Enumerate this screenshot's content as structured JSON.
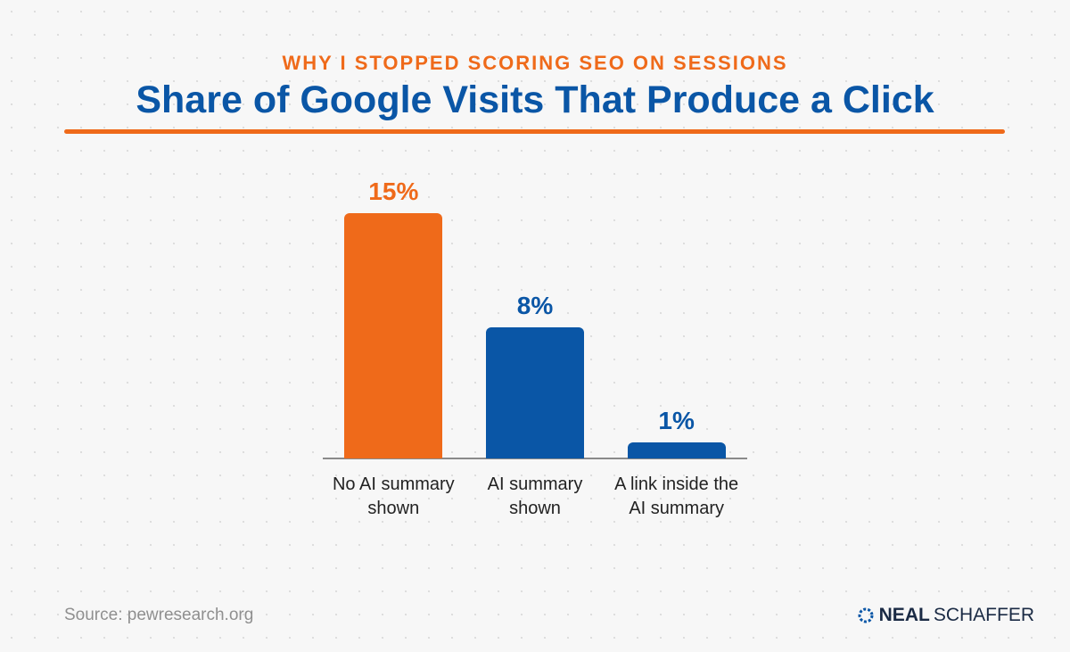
{
  "chart_data": {
    "type": "bar",
    "subtitle": "WHY I STOPPED SCORING SEO ON SESSIONS",
    "title": "Share of Google Visits That Produce a Click",
    "categories": [
      "No AI summary shown",
      "AI summary shown",
      "A link inside the AI summary"
    ],
    "values": [
      15,
      8,
      1
    ],
    "value_labels": [
      "15%",
      "8%",
      "1%"
    ],
    "colors": [
      "#ef6a1a",
      "#0a56a6",
      "#0a56a6"
    ],
    "source": "Source: pewresearch.org",
    "logo": {
      "first": "NEAL",
      "last": "SCHAFFER"
    }
  }
}
